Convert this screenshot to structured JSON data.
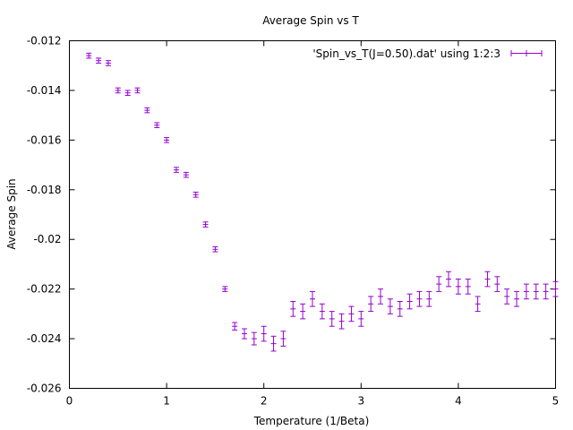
{
  "chart_data": {
    "type": "scatter",
    "title": "Average Spin vs T",
    "xlabel": "Temperature (1/Beta)",
    "ylabel": "Average Spin",
    "xlim": [
      0,
      5
    ],
    "ylim": [
      -0.026,
      -0.012
    ],
    "xticks": [
      0,
      1,
      2,
      3,
      4,
      5
    ],
    "yticks": [
      -0.026,
      -0.024,
      -0.022,
      -0.02,
      -0.018,
      -0.016,
      -0.014,
      -0.012
    ],
    "xtick_labels": [
      "0",
      "1",
      "2",
      "3",
      "4",
      "5"
    ],
    "ytick_labels": [
      "-0.026",
      "-0.024",
      "-0.022",
      "-0.02",
      "-0.018",
      "-0.016",
      "-0.014",
      "-0.012"
    ],
    "grid": false,
    "legend_position": "top-right",
    "series": [
      {
        "name": "'Spin_vs_T(J=0.50).dat' using 1:2:3",
        "color": "#9400d3",
        "style": "points with y error bars",
        "x": [
          0.2,
          0.3,
          0.4,
          0.5,
          0.6,
          0.7,
          0.8,
          0.9,
          1.0,
          1.1,
          1.2,
          1.3,
          1.4,
          1.5,
          1.6,
          1.7,
          1.8,
          1.9,
          2.0,
          2.1,
          2.2,
          2.3,
          2.4,
          2.5,
          2.6,
          2.7,
          2.8,
          2.9,
          3.0,
          3.1,
          3.2,
          3.3,
          3.4,
          3.5,
          3.6,
          3.7,
          3.8,
          3.9,
          4.0,
          4.1,
          4.2,
          4.3,
          4.4,
          4.5,
          4.6,
          4.7,
          4.8,
          4.9,
          5.0
        ],
        "y": [
          -0.0126,
          -0.0128,
          -0.0129,
          -0.014,
          -0.0141,
          -0.014,
          -0.0148,
          -0.0154,
          -0.016,
          -0.0172,
          -0.0174,
          -0.0182,
          -0.0194,
          -0.0204,
          -0.022,
          -0.0235,
          -0.0238,
          -0.024,
          -0.0238,
          -0.0242,
          -0.024,
          -0.0228,
          -0.0229,
          -0.0224,
          -0.0229,
          -0.0232,
          -0.0233,
          -0.023,
          -0.0232,
          -0.0226,
          -0.0223,
          -0.0227,
          -0.0228,
          -0.0225,
          -0.0224,
          -0.0224,
          -0.0218,
          -0.0216,
          -0.0219,
          -0.0219,
          -0.0226,
          -0.0216,
          -0.0218,
          -0.0223,
          -0.0224,
          -0.0221,
          -0.0221,
          -0.0221,
          -0.022
        ],
        "yerr": [
          0.0001,
          0.0001,
          0.0001,
          0.0001,
          0.0001,
          0.0001,
          0.0001,
          0.0001,
          0.0001,
          0.0001,
          0.0001,
          0.0001,
          0.0001,
          0.0001,
          0.0001,
          0.00015,
          0.0002,
          0.00025,
          0.0003,
          0.0003,
          0.0003,
          0.0003,
          0.0003,
          0.0003,
          0.0003,
          0.0003,
          0.0003,
          0.0003,
          0.0003,
          0.0003,
          0.0003,
          0.0003,
          0.0003,
          0.0003,
          0.0003,
          0.0003,
          0.0003,
          0.0003,
          0.0003,
          0.0003,
          0.0003,
          0.0003,
          0.0003,
          0.0003,
          0.0003,
          0.0003,
          0.0003,
          0.0003,
          0.0003
        ]
      }
    ]
  }
}
